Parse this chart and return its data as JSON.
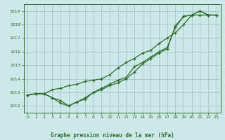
{
  "title": "Graphe pression niveau de la mer (hPa)",
  "background_color": "#cce8e8",
  "grid_color": "#aacccc",
  "line_color": "#2d6e2d",
  "xlim": [
    -0.5,
    23.5
  ],
  "ylim": [
    1011.5,
    1019.5
  ],
  "yticks": [
    1012,
    1013,
    1014,
    1015,
    1016,
    1017,
    1018,
    1019
  ],
  "xticks": [
    0,
    1,
    2,
    3,
    4,
    5,
    6,
    7,
    8,
    9,
    10,
    11,
    12,
    13,
    14,
    15,
    16,
    17,
    18,
    19,
    20,
    21,
    22,
    23
  ],
  "series1": {
    "x": [
      0,
      1,
      2,
      3,
      4,
      5,
      6,
      7,
      8,
      9,
      10,
      11,
      12,
      13,
      14,
      15,
      16,
      17,
      18,
      19,
      20,
      21,
      22,
      23
    ],
    "y": [
      1012.8,
      1012.9,
      1012.9,
      1012.6,
      1012.2,
      1012.0,
      1012.3,
      1012.5,
      1013.0,
      1013.2,
      1013.5,
      1013.7,
      1014.0,
      1014.5,
      1015.1,
      1015.5,
      1015.9,
      1016.2,
      1017.9,
      1018.6,
      1018.7,
      1019.0,
      1018.7,
      1018.7
    ]
  },
  "series2": {
    "x": [
      0,
      1,
      2,
      3,
      4,
      5,
      6,
      7,
      8,
      9,
      10,
      11,
      12,
      13,
      14,
      15,
      16,
      17,
      18,
      19,
      20,
      21,
      22,
      23
    ],
    "y": [
      1012.8,
      1012.9,
      1012.9,
      1013.2,
      1013.3,
      1013.5,
      1013.6,
      1013.8,
      1013.9,
      1014.0,
      1014.3,
      1014.8,
      1015.2,
      1015.5,
      1015.9,
      1016.1,
      1016.6,
      1017.0,
      1017.4,
      1018.0,
      1018.7,
      1018.7,
      1018.7,
      1018.7
    ]
  },
  "series3": {
    "x": [
      0,
      1,
      2,
      3,
      4,
      5,
      6,
      7,
      8,
      9,
      10,
      11,
      12,
      13,
      14,
      15,
      16,
      17,
      18,
      19,
      20,
      21,
      22,
      23
    ],
    "y": [
      1012.8,
      1012.9,
      1012.9,
      1012.6,
      1012.4,
      1012.0,
      1012.3,
      1012.6,
      1013.0,
      1013.3,
      1013.6,
      1013.9,
      1014.1,
      1014.9,
      1015.2,
      1015.6,
      1016.0,
      1016.3,
      1017.8,
      1018.6,
      1018.7,
      1019.0,
      1018.7,
      1018.7
    ]
  },
  "figsize": [
    3.2,
    2.0
  ],
  "dpi": 100
}
